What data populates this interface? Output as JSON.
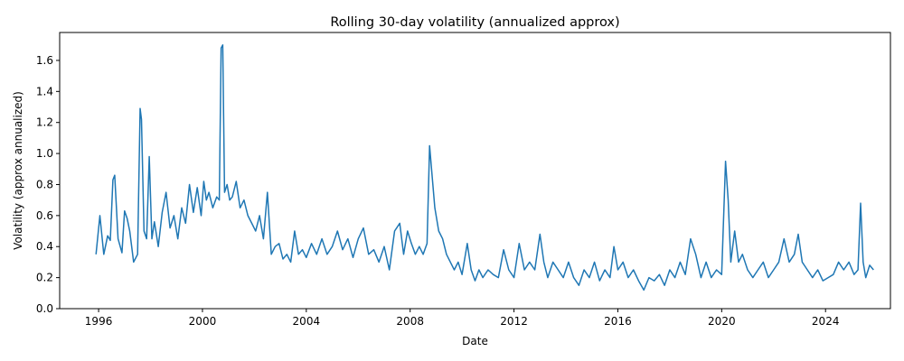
{
  "chart_data": {
    "type": "line",
    "title": "Rolling 30-day volatility (annualized approx)",
    "xlabel": "Date",
    "ylabel": "Volatility (approx annualized)",
    "xlim": [
      1994.5,
      2026.5
    ],
    "ylim": [
      0.0,
      1.78
    ],
    "x_ticks": [
      1996,
      2000,
      2004,
      2008,
      2012,
      2016,
      2020,
      2024
    ],
    "x_tick_labels": [
      "1996",
      "2000",
      "2004",
      "2008",
      "2012",
      "2016",
      "2020",
      "2024"
    ],
    "y_ticks": [
      0.0,
      0.2,
      0.4,
      0.6,
      0.8,
      1.0,
      1.2,
      1.4,
      1.6
    ],
    "y_tick_labels": [
      "0.0",
      "0.2",
      "0.4",
      "0.6",
      "0.8",
      "1.0",
      "1.2",
      "1.4",
      "1.6"
    ],
    "grid": false,
    "legend": false,
    "series": [
      {
        "color": "#1f77b4",
        "x": [
          1995.9,
          1996.05,
          1996.2,
          1996.35,
          1996.45,
          1996.55,
          1996.62,
          1996.75,
          1996.9,
          1997.0,
          1997.1,
          1997.2,
          1997.35,
          1997.5,
          1997.6,
          1997.65,
          1997.75,
          1997.85,
          1997.95,
          1998.05,
          1998.15,
          1998.3,
          1998.45,
          1998.6,
          1998.75,
          1998.9,
          1999.05,
          1999.2,
          1999.35,
          1999.5,
          1999.65,
          1999.8,
          1999.95,
          2000.05,
          2000.15,
          2000.25,
          2000.4,
          2000.55,
          2000.65,
          2000.72,
          2000.78,
          2000.85,
          2000.95,
          2001.05,
          2001.15,
          2001.3,
          2001.45,
          2001.6,
          2001.75,
          2001.9,
          2002.05,
          2002.2,
          2002.35,
          2002.5,
          2002.65,
          2002.8,
          2002.95,
          2003.1,
          2003.25,
          2003.4,
          2003.55,
          2003.7,
          2003.85,
          2004.0,
          2004.2,
          2004.4,
          2004.6,
          2004.8,
          2005.0,
          2005.2,
          2005.4,
          2005.6,
          2005.8,
          2006.0,
          2006.2,
          2006.4,
          2006.6,
          2006.8,
          2007.0,
          2007.2,
          2007.4,
          2007.6,
          2007.75,
          2007.9,
          2008.05,
          2008.2,
          2008.35,
          2008.5,
          2008.65,
          2008.75,
          2008.85,
          2008.95,
          2009.1,
          2009.25,
          2009.4,
          2009.55,
          2009.7,
          2009.85,
          2010.0,
          2010.2,
          2010.35,
          2010.5,
          2010.65,
          2010.8,
          2011.0,
          2011.2,
          2011.4,
          2011.6,
          2011.8,
          2012.0,
          2012.2,
          2012.4,
          2012.6,
          2012.8,
          2013.0,
          2013.15,
          2013.3,
          2013.5,
          2013.7,
          2013.9,
          2014.1,
          2014.3,
          2014.5,
          2014.7,
          2014.9,
          2015.1,
          2015.3,
          2015.5,
          2015.7,
          2015.85,
          2016.0,
          2016.2,
          2016.4,
          2016.6,
          2016.8,
          2017.0,
          2017.2,
          2017.4,
          2017.6,
          2017.8,
          2018.0,
          2018.2,
          2018.4,
          2018.6,
          2018.8,
          2019.0,
          2019.2,
          2019.4,
          2019.6,
          2019.8,
          2020.0,
          2020.15,
          2020.25,
          2020.35,
          2020.5,
          2020.65,
          2020.8,
          2021.0,
          2021.2,
          2021.4,
          2021.6,
          2021.8,
          2022.0,
          2022.2,
          2022.4,
          2022.6,
          2022.8,
          2022.95,
          2023.1,
          2023.3,
          2023.5,
          2023.7,
          2023.9,
          2024.1,
          2024.3,
          2024.5,
          2024.7,
          2024.9,
          2025.1,
          2025.25,
          2025.35,
          2025.45,
          2025.55,
          2025.7,
          2025.85
        ],
        "values": [
          0.35,
          0.6,
          0.35,
          0.47,
          0.44,
          0.83,
          0.86,
          0.45,
          0.36,
          0.63,
          0.58,
          0.5,
          0.3,
          0.35,
          1.29,
          1.22,
          0.5,
          0.45,
          0.98,
          0.45,
          0.56,
          0.4,
          0.62,
          0.75,
          0.52,
          0.6,
          0.45,
          0.65,
          0.55,
          0.8,
          0.62,
          0.78,
          0.6,
          0.82,
          0.7,
          0.75,
          0.65,
          0.72,
          0.7,
          1.68,
          1.7,
          0.75,
          0.8,
          0.7,
          0.72,
          0.82,
          0.65,
          0.7,
          0.6,
          0.55,
          0.5,
          0.6,
          0.45,
          0.75,
          0.35,
          0.4,
          0.42,
          0.32,
          0.35,
          0.3,
          0.5,
          0.35,
          0.38,
          0.33,
          0.42,
          0.35,
          0.45,
          0.35,
          0.4,
          0.5,
          0.38,
          0.45,
          0.33,
          0.45,
          0.52,
          0.35,
          0.38,
          0.3,
          0.4,
          0.25,
          0.5,
          0.55,
          0.35,
          0.5,
          0.42,
          0.35,
          0.4,
          0.35,
          0.42,
          1.05,
          0.85,
          0.65,
          0.5,
          0.45,
          0.35,
          0.3,
          0.25,
          0.3,
          0.22,
          0.42,
          0.25,
          0.18,
          0.25,
          0.2,
          0.25,
          0.22,
          0.2,
          0.38,
          0.25,
          0.2,
          0.42,
          0.25,
          0.3,
          0.25,
          0.48,
          0.3,
          0.2,
          0.3,
          0.25,
          0.2,
          0.3,
          0.2,
          0.15,
          0.25,
          0.2,
          0.3,
          0.18,
          0.25,
          0.2,
          0.4,
          0.25,
          0.3,
          0.2,
          0.25,
          0.18,
          0.12,
          0.2,
          0.18,
          0.22,
          0.15,
          0.25,
          0.2,
          0.3,
          0.22,
          0.45,
          0.35,
          0.2,
          0.3,
          0.2,
          0.25,
          0.22,
          0.95,
          0.7,
          0.3,
          0.5,
          0.3,
          0.35,
          0.25,
          0.2,
          0.25,
          0.3,
          0.2,
          0.25,
          0.3,
          0.45,
          0.3,
          0.35,
          0.48,
          0.3,
          0.25,
          0.2,
          0.25,
          0.18,
          0.2,
          0.22,
          0.3,
          0.25,
          0.3,
          0.22,
          0.25,
          0.68,
          0.3,
          0.2,
          0.28,
          0.25
        ]
      }
    ]
  }
}
